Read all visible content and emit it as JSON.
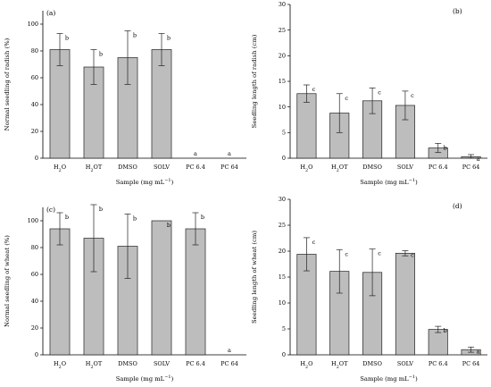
{
  "chart_data": [
    {
      "id": "a",
      "type": "bar",
      "panel_label": "(a)",
      "ylabel": "Normal seedling of radish (%)",
      "xlabel": "Sample (mg mL",
      "xlabel_sup": "−1",
      "xlabel_end": ")",
      "ylim": [
        0,
        110
      ],
      "yticks": [
        0,
        20,
        40,
        60,
        80,
        100
      ],
      "categories": [
        "H2O",
        "H2OT",
        "DMSO",
        "SOLV",
        "PC 6.4",
        "PC 64"
      ],
      "values": [
        81,
        68,
        75,
        81,
        0,
        0
      ],
      "errors": [
        12,
        13,
        20,
        12,
        0,
        0
      ],
      "letters": [
        "b",
        "b",
        "b",
        "b",
        "a",
        "a"
      ]
    },
    {
      "id": "b",
      "type": "bar",
      "panel_label": "(b)",
      "ylabel": "Seedling length of radish (cm)",
      "xlabel": "Sample (mg mL",
      "xlabel_sup": "−1",
      "xlabel_end": ")",
      "ylim": [
        0,
        30
      ],
      "yticks": [
        0,
        5,
        10,
        15,
        20,
        25,
        30
      ],
      "categories": [
        "H2O",
        "H2OT",
        "DMSO",
        "SOLV",
        "PC 6.4",
        "PC 64"
      ],
      "values": [
        12.6,
        8.8,
        11.2,
        10.3,
        2.0,
        0.3
      ],
      "errors": [
        1.7,
        3.8,
        2.5,
        2.8,
        0.9,
        0.4
      ],
      "letters": [
        "c",
        "c",
        "c",
        "c",
        "b",
        "a"
      ]
    },
    {
      "id": "c",
      "type": "bar",
      "panel_label": "(c)",
      "ylabel": "Normal seedling of wheat (%)",
      "xlabel": "Sample (mg mL",
      "xlabel_sup": "−1",
      "xlabel_end": ")",
      "ylim": [
        0,
        110
      ],
      "yticks": [
        0,
        20,
        40,
        60,
        80,
        100
      ],
      "categories": [
        "H2O",
        "H2OT",
        "DMSO",
        "SOLV",
        "PC 6.4",
        "PC 64"
      ],
      "values": [
        94,
        87,
        81,
        100,
        94,
        0
      ],
      "errors": [
        12,
        25,
        24,
        0,
        12,
        0
      ],
      "letters": [
        "b",
        "b",
        "b",
        "b",
        "b",
        "a"
      ]
    },
    {
      "id": "d",
      "type": "bar",
      "panel_label": "(d)",
      "ylabel": "Seedling length of wheat (cm)",
      "xlabel": "Sample (mg mL",
      "xlabel_sup": "−1",
      "xlabel_end": ")",
      "ylim": [
        0,
        30
      ],
      "yticks": [
        0,
        5,
        10,
        15,
        20,
        25,
        30
      ],
      "categories": [
        "H2O",
        "H2OT",
        "DMSO",
        "SOLV",
        "PC 6.4",
        "PC 64"
      ],
      "values": [
        19.4,
        16.1,
        15.9,
        19.6,
        4.9,
        1.0
      ],
      "errors": [
        3.2,
        4.2,
        4.5,
        0.5,
        0.6,
        0.5
      ],
      "letters": [
        "c",
        "c",
        "c",
        "c",
        "b",
        "a"
      ]
    }
  ]
}
